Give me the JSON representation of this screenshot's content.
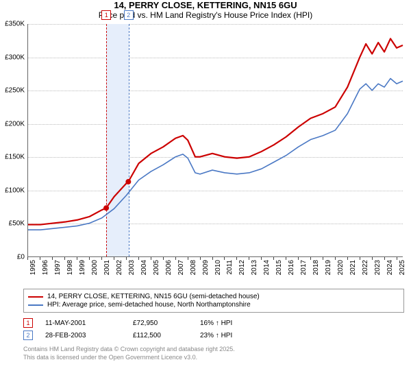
{
  "title": "14, PERRY CLOSE, KETTERING, NN15 6GU",
  "subtitle": "Price paid vs. HM Land Registry's House Price Index (HPI)",
  "chart": {
    "type": "line",
    "x_min": 1995,
    "x_max": 2025.5,
    "y_min": 0,
    "y_max": 350,
    "y_unit": "K",
    "y_prefix": "£",
    "y_ticks": [
      0,
      50,
      100,
      150,
      200,
      250,
      300,
      350
    ],
    "x_ticks": [
      1995,
      1996,
      1997,
      1998,
      1999,
      2000,
      2001,
      2002,
      2003,
      2004,
      2005,
      2006,
      2007,
      2008,
      2009,
      2010,
      2011,
      2012,
      2013,
      2014,
      2015,
      2016,
      2017,
      2018,
      2019,
      2020,
      2021,
      2022,
      2023,
      2024,
      2025
    ],
    "background_color": "#ffffff",
    "grid_color": "#bbbbbb",
    "band_color": "#e6eefb",
    "series": [
      {
        "id": "property",
        "label": "14, PERRY CLOSE, KETTERING, NN15 6GU (semi-detached house)",
        "color": "#cc0000",
        "width": 2.2,
        "data": [
          [
            1995,
            48
          ],
          [
            1996,
            48
          ],
          [
            1997,
            50
          ],
          [
            1998,
            52
          ],
          [
            1999,
            55
          ],
          [
            2000,
            60
          ],
          [
            2001,
            70
          ],
          [
            2001.36,
            72.95
          ],
          [
            2002,
            90
          ],
          [
            2003,
            110
          ],
          [
            2003.16,
            112.5
          ],
          [
            2004,
            140
          ],
          [
            2005,
            155
          ],
          [
            2006,
            165
          ],
          [
            2007,
            178
          ],
          [
            2007.6,
            182
          ],
          [
            2008,
            175
          ],
          [
            2008.6,
            150
          ],
          [
            2009,
            150
          ],
          [
            2010,
            155
          ],
          [
            2011,
            150
          ],
          [
            2012,
            148
          ],
          [
            2013,
            150
          ],
          [
            2014,
            158
          ],
          [
            2015,
            168
          ],
          [
            2016,
            180
          ],
          [
            2017,
            195
          ],
          [
            2018,
            208
          ],
          [
            2019,
            215
          ],
          [
            2020,
            225
          ],
          [
            2021,
            255
          ],
          [
            2022,
            300
          ],
          [
            2022.5,
            320
          ],
          [
            2023,
            305
          ],
          [
            2023.5,
            322
          ],
          [
            2024,
            308
          ],
          [
            2024.5,
            328
          ],
          [
            2025,
            314
          ],
          [
            2025.5,
            318
          ]
        ]
      },
      {
        "id": "hpi",
        "label": "HPI: Average price, semi-detached house, North Northamptonshire",
        "color": "#4a78c4",
        "width": 1.6,
        "data": [
          [
            1995,
            40
          ],
          [
            1996,
            40
          ],
          [
            1997,
            42
          ],
          [
            1998,
            44
          ],
          [
            1999,
            46
          ],
          [
            2000,
            50
          ],
          [
            2001,
            58
          ],
          [
            2002,
            72
          ],
          [
            2003,
            92
          ],
          [
            2004,
            115
          ],
          [
            2005,
            128
          ],
          [
            2006,
            138
          ],
          [
            2007,
            150
          ],
          [
            2007.6,
            154
          ],
          [
            2008,
            148
          ],
          [
            2008.6,
            126
          ],
          [
            2009,
            124
          ],
          [
            2010,
            130
          ],
          [
            2011,
            126
          ],
          [
            2012,
            124
          ],
          [
            2013,
            126
          ],
          [
            2014,
            132
          ],
          [
            2015,
            142
          ],
          [
            2016,
            152
          ],
          [
            2017,
            165
          ],
          [
            2018,
            176
          ],
          [
            2019,
            182
          ],
          [
            2020,
            190
          ],
          [
            2021,
            215
          ],
          [
            2022,
            252
          ],
          [
            2022.5,
            260
          ],
          [
            2023,
            250
          ],
          [
            2023.5,
            260
          ],
          [
            2024,
            255
          ],
          [
            2024.5,
            268
          ],
          [
            2025,
            260
          ],
          [
            2025.5,
            264
          ]
        ]
      }
    ],
    "events": [
      {
        "n": "1",
        "x": 2001.36,
        "color": "#cc0000"
      },
      {
        "n": "2",
        "x": 2003.16,
        "color": "#4a78c4"
      }
    ],
    "event_band": {
      "from": 2001.36,
      "to": 2003.16
    },
    "sale_points": [
      {
        "x": 2001.36,
        "y": 72.95,
        "color": "#cc0000"
      },
      {
        "x": 2003.16,
        "y": 112.5,
        "color": "#cc0000"
      }
    ]
  },
  "sales": [
    {
      "n": "1",
      "date": "11-MAY-2001",
      "price": "£72,950",
      "hpi": "16% ↑ HPI",
      "color": "#cc0000"
    },
    {
      "n": "2",
      "date": "28-FEB-2003",
      "price": "£112,500",
      "hpi": "23% ↑ HPI",
      "color": "#4a78c4"
    }
  ],
  "footer": {
    "line1": "Contains HM Land Registry data © Crown copyright and database right 2025.",
    "line2": "This data is licensed under the Open Government Licence v3.0."
  }
}
